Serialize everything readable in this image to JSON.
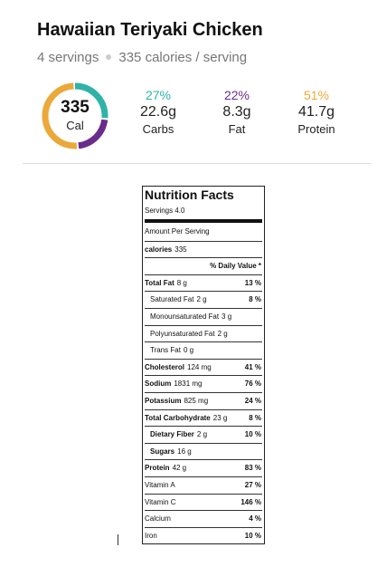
{
  "header": {
    "title": "Hawaiian Teriyaki Chicken",
    "servings": "4 servings",
    "calories_per_serving": "335 calories / serving"
  },
  "summary": {
    "calories": "335",
    "calories_unit": "Cal",
    "macros": [
      {
        "percent": {
          "value": 27,
          "label": "27%"
        },
        "amount": "22.6g",
        "name": "Carbs",
        "color": "#2fb3a8"
      },
      {
        "percent": {
          "value": 22,
          "label": "22%"
        },
        "amount": "8.3g",
        "name": "Fat",
        "color": "#6a2c8c"
      },
      {
        "percent": {
          "value": 51,
          "label": "51%"
        },
        "amount": "41.7g",
        "name": "Protein",
        "color": "#eba93a"
      }
    ]
  },
  "nutrition_label": {
    "title": "Nutrition Facts",
    "servings": "Servings 4.0",
    "amount_per_serving": "Amount Per Serving",
    "calories_label": "calories",
    "calories": "335",
    "daily_value_header": "% Daily Value *",
    "rows": [
      {
        "name": "Total Fat",
        "amount": "8 g",
        "dv": "13 %",
        "bold": true,
        "indent": false
      },
      {
        "name": "Saturated Fat",
        "amount": "2 g",
        "dv": "8 %",
        "bold": false,
        "indent": true
      },
      {
        "name": "Monounsaturated Fat",
        "amount": "3 g",
        "dv": null,
        "bold": false,
        "indent": true
      },
      {
        "name": "Polyunsaturated Fat",
        "amount": "2 g",
        "dv": null,
        "bold": false,
        "indent": true
      },
      {
        "name": "Trans Fat",
        "amount": "0 g",
        "dv": null,
        "bold": false,
        "indent": true
      },
      {
        "name": "Cholesterol",
        "amount": "124 mg",
        "dv": "41 %",
        "bold": true,
        "indent": false
      },
      {
        "name": "Sodium",
        "amount": "1831 mg",
        "dv": "76 %",
        "bold": true,
        "indent": false
      },
      {
        "name": "Potassium",
        "amount": "825 mg",
        "dv": "24 %",
        "bold": true,
        "indent": false
      },
      {
        "name": "Total Carbohydrate",
        "amount": "23 g",
        "dv": "8 %",
        "bold": true,
        "indent": false
      },
      {
        "name": "Dietary Fiber",
        "amount": "2 g",
        "dv": "10 %",
        "bold": true,
        "indent": true
      },
      {
        "name": "Sugars",
        "amount": "16 g",
        "dv": null,
        "bold": true,
        "indent": true
      },
      {
        "name": "Protein",
        "amount": "42 g",
        "dv": "83 %",
        "bold": true,
        "indent": false
      },
      {
        "name": "Vitamin A",
        "amount": null,
        "dv": "27 %",
        "bold": false,
        "indent": false
      },
      {
        "name": "Vitamin C",
        "amount": null,
        "dv": "146 %",
        "bold": false,
        "indent": false
      },
      {
        "name": "Calcium",
        "amount": null,
        "dv": "4 %",
        "bold": false,
        "indent": false
      },
      {
        "name": "Iron",
        "amount": null,
        "dv": "10 %",
        "bold": false,
        "indent": false
      }
    ]
  }
}
